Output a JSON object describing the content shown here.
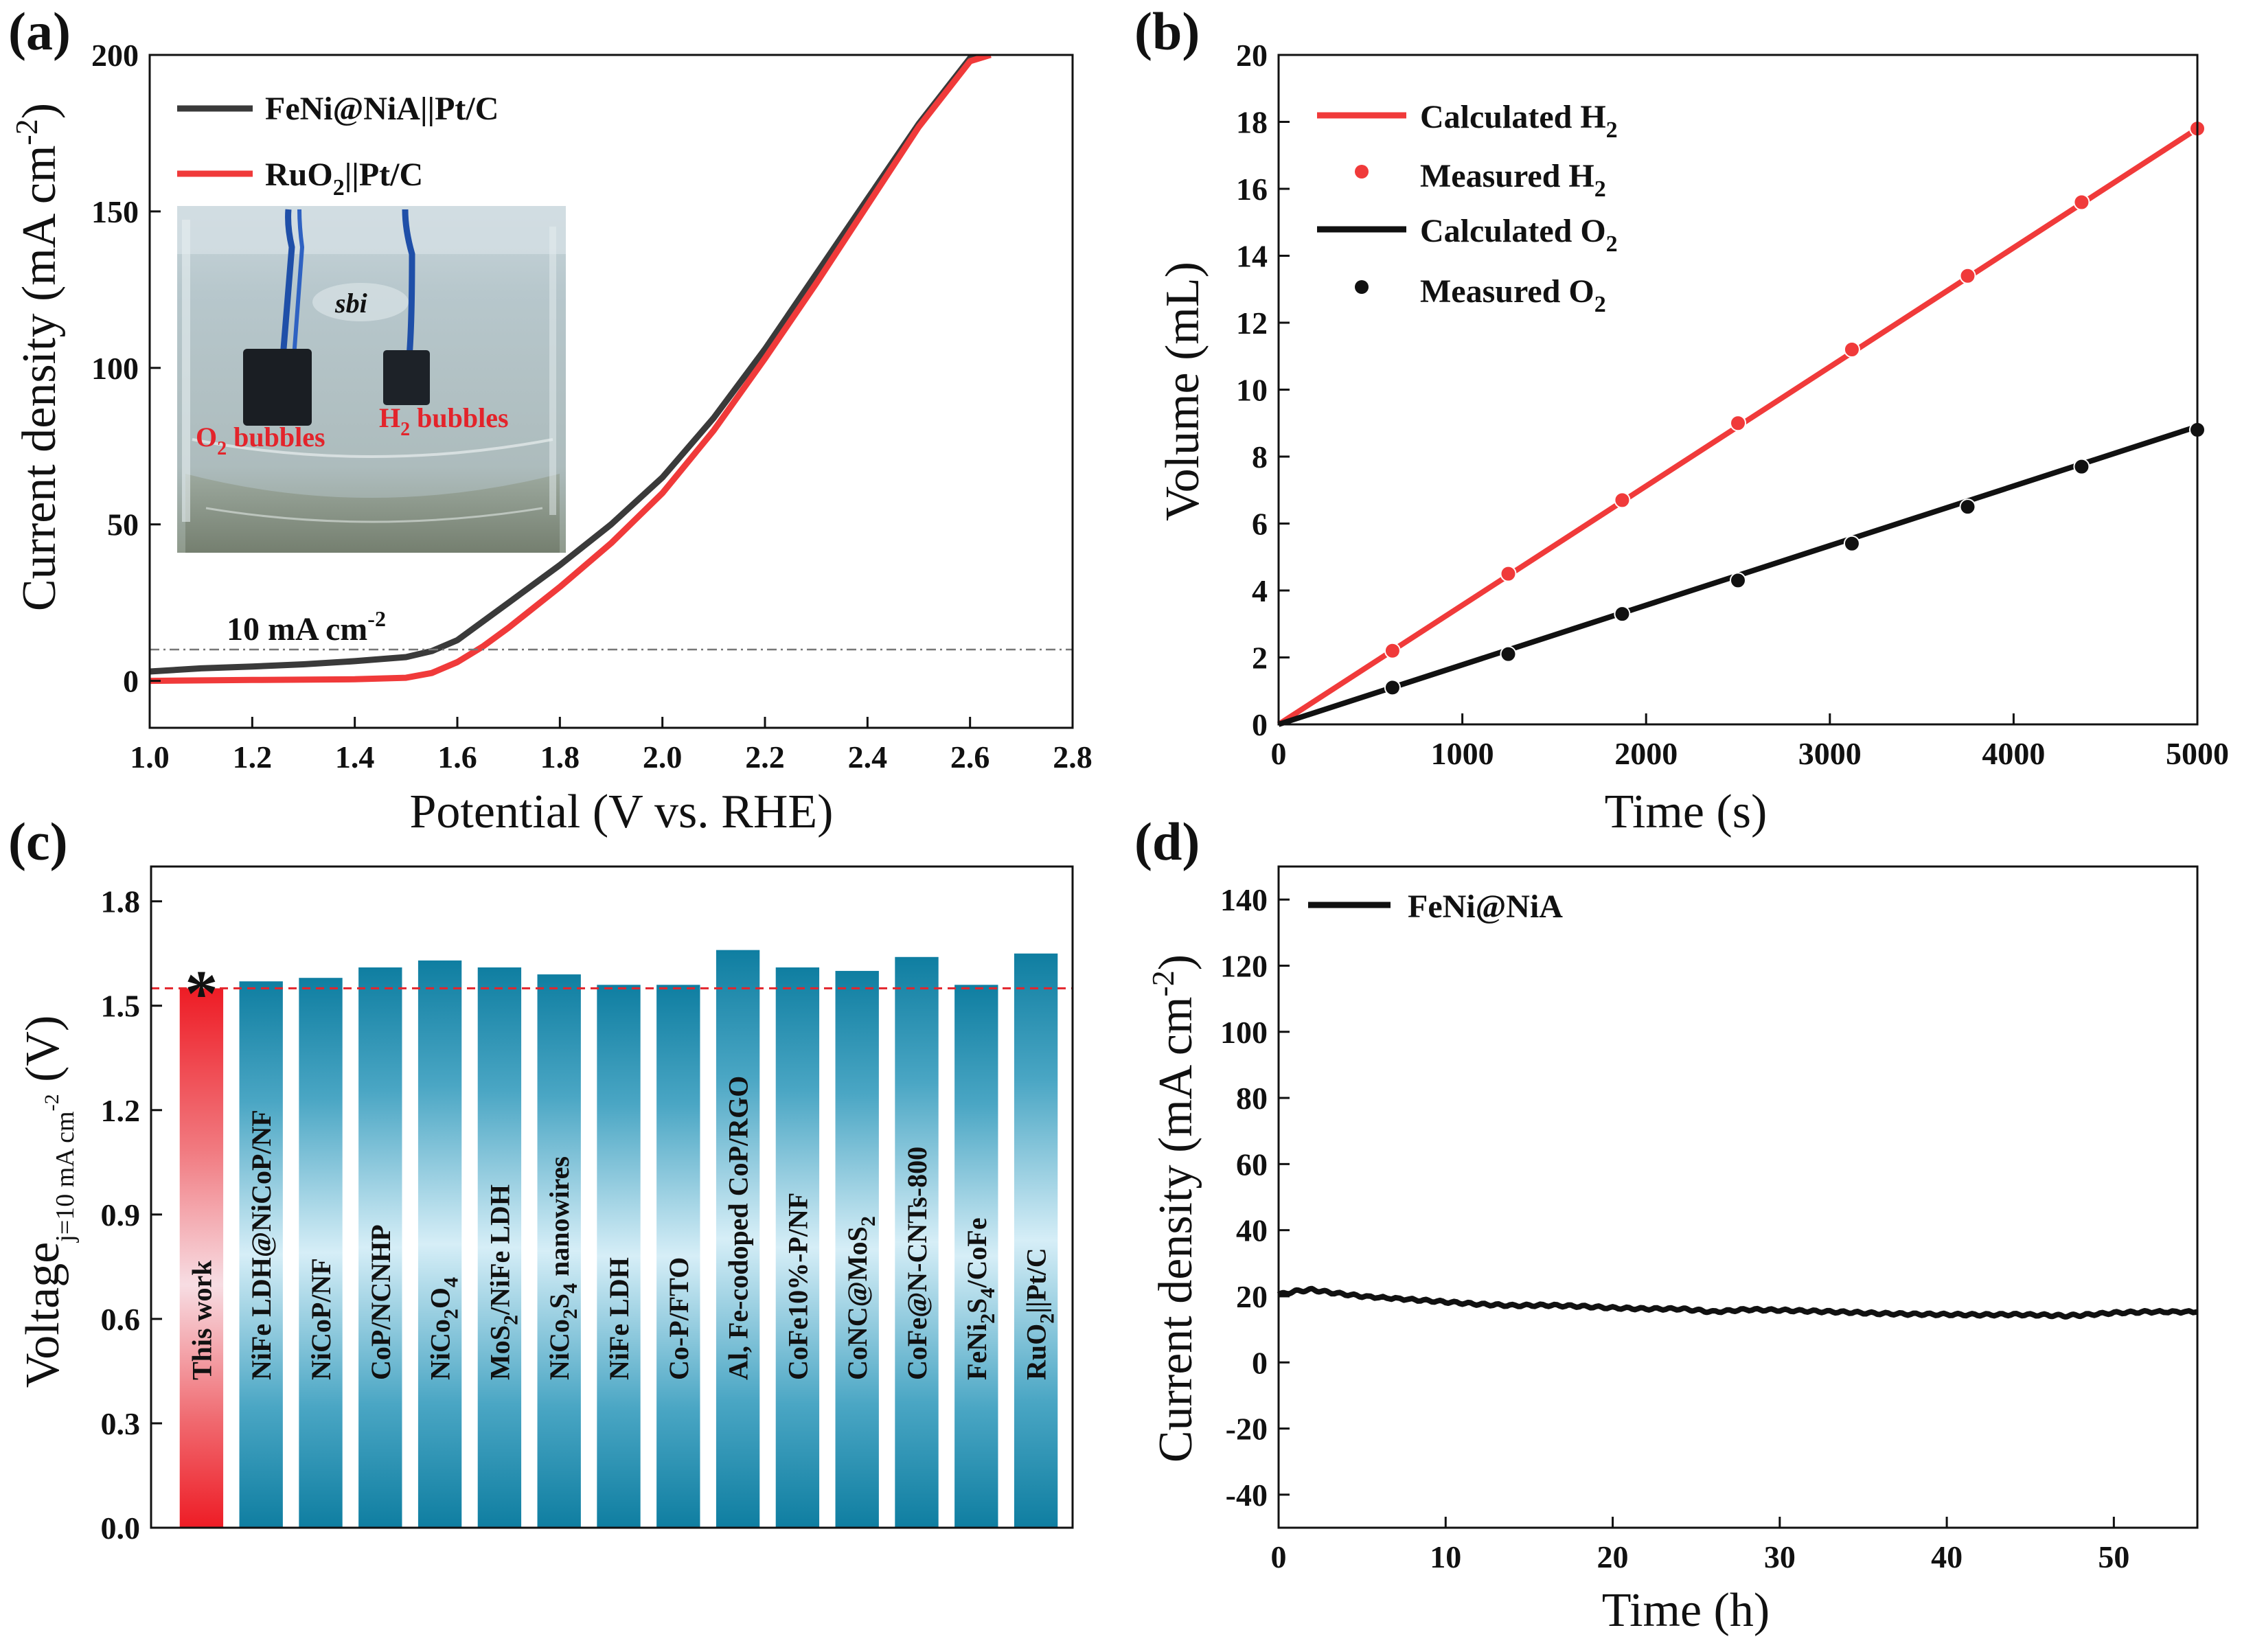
{
  "figure": {
    "colors": {
      "black_series": "#111111",
      "gray_series": "#3a3a3a",
      "red_series": "#f03a3a",
      "teal_bar": "#0f7ea1",
      "teal_light": "#d6eef7",
      "this_work_red": "#ee1c25",
      "dashed_red": "#e3242b",
      "reference_line": "#777777"
    }
  },
  "chart_data": [
    {
      "id": "a",
      "panel_label": "(a)",
      "type": "line",
      "xlabel": "Potential (V vs. RHE)",
      "ylabel_parts": {
        "main": "Current density (mA cm",
        "sup": "-2",
        "close": ")"
      },
      "xlim": [
        1.0,
        2.8
      ],
      "ylim": [
        -15,
        200
      ],
      "xticks": [
        "1.0",
        "1.2",
        "1.4",
        "1.6",
        "1.8",
        "2.0",
        "2.2",
        "2.4",
        "2.6",
        "2.8"
      ],
      "xtick_values": [
        1.0,
        1.2,
        1.4,
        1.6,
        1.8,
        2.0,
        2.2,
        2.4,
        2.6,
        2.8
      ],
      "yticks": [
        "0",
        "50",
        "100",
        "150",
        "200"
      ],
      "ytick_values": [
        0,
        50,
        100,
        150,
        200
      ],
      "series": [
        {
          "name": "FeNi@NiA||Pt/C",
          "legend_parts": {
            "main": "FeNi@NiA||Pt/C"
          },
          "color": "#3a3a3a",
          "points": [
            [
              1.0,
              3
            ],
            [
              1.1,
              4
            ],
            [
              1.2,
              4.6
            ],
            [
              1.3,
              5.3
            ],
            [
              1.4,
              6.3
            ],
            [
              1.5,
              7.6
            ],
            [
              1.55,
              9.5
            ],
            [
              1.6,
              13
            ],
            [
              1.7,
              25
            ],
            [
              1.8,
              37
            ],
            [
              1.9,
              50
            ],
            [
              2.0,
              65
            ],
            [
              2.1,
              84
            ],
            [
              2.2,
              106
            ],
            [
              2.3,
              130
            ],
            [
              2.4,
              154
            ],
            [
              2.5,
              178
            ],
            [
              2.6,
              199
            ],
            [
              2.62,
              200
            ]
          ]
        },
        {
          "name": "RuO2||Pt/C",
          "legend_parts": {
            "main": "RuO",
            "sub": "2",
            "rest": "||Pt/C"
          },
          "color": "#f03a3a",
          "points": [
            [
              1.0,
              0
            ],
            [
              1.2,
              0.3
            ],
            [
              1.4,
              0.5
            ],
            [
              1.5,
              1.0
            ],
            [
              1.55,
              2.5
            ],
            [
              1.6,
              6
            ],
            [
              1.65,
              11
            ],
            [
              1.7,
              17
            ],
            [
              1.8,
              30
            ],
            [
              1.9,
              44
            ],
            [
              2.0,
              60
            ],
            [
              2.1,
              80
            ],
            [
              2.2,
              103
            ],
            [
              2.3,
              127
            ],
            [
              2.4,
              152
            ],
            [
              2.5,
              177
            ],
            [
              2.6,
              198
            ],
            [
              2.64,
              200
            ]
          ]
        }
      ],
      "reference_line": {
        "y": 10,
        "label_parts": {
          "main": "10 mA cm",
          "sup": "-2"
        }
      },
      "inset": {
        "left_label_parts": {
          "main": "O",
          "sub": "2",
          "rest": " bubbles"
        },
        "right_label_parts": {
          "main": "H",
          "sub": "2",
          "rest": " bubbles"
        },
        "jar_label": "sbi"
      }
    },
    {
      "id": "b",
      "panel_label": "(b)",
      "type": "line+scatter",
      "xlabel": "Time (s)",
      "ylabel": "Volume (mL)",
      "xlim": [
        0,
        5000
      ],
      "ylim": [
        0,
        20
      ],
      "xticks": [
        "0",
        "1000",
        "2000",
        "3000",
        "4000",
        "5000"
      ],
      "xtick_values": [
        0,
        1000,
        2000,
        3000,
        4000,
        5000
      ],
      "yticks": [
        "0",
        "2",
        "4",
        "6",
        "8",
        "10",
        "12",
        "14",
        "16",
        "18",
        "20"
      ],
      "ytick_values": [
        0,
        2,
        4,
        6,
        8,
        10,
        12,
        14,
        16,
        18,
        20
      ],
      "series": [
        {
          "name": "Calculated H2",
          "legend_parts": {
            "main": "Calculated H",
            "sub": "2"
          },
          "style": "line",
          "color": "#f03a3a",
          "x": [
            0,
            5000
          ],
          "y": [
            0,
            17.8
          ]
        },
        {
          "name": "Measured H2",
          "legend_parts": {
            "main": "Measured H",
            "sub": "2"
          },
          "style": "points",
          "color": "#f03a3a",
          "x": [
            620,
            1250,
            1870,
            2500,
            3120,
            3750,
            4370,
            5000
          ],
          "y": [
            2.2,
            4.5,
            6.7,
            9.0,
            11.2,
            13.4,
            15.6,
            17.8
          ]
        },
        {
          "name": "Calculated O2",
          "legend_parts": {
            "main": "Calculated O",
            "sub": "2"
          },
          "style": "line",
          "color": "#111111",
          "x": [
            0,
            5000
          ],
          "y": [
            0,
            8.9
          ]
        },
        {
          "name": "Measured O2",
          "legend_parts": {
            "main": "Measured O",
            "sub": "2"
          },
          "style": "points",
          "color": "#111111",
          "x": [
            620,
            1250,
            1870,
            2500,
            3120,
            3750,
            4370,
            5000
          ],
          "y": [
            1.1,
            2.1,
            3.3,
            4.3,
            5.4,
            6.5,
            7.7,
            8.8
          ]
        }
      ]
    },
    {
      "id": "c",
      "panel_label": "(c)",
      "type": "bar",
      "ylabel_parts": {
        "main": "Voltage",
        "sub": "j=10 mA cm",
        "subsup": "-2",
        "close": " (V)"
      },
      "ylim": [
        0,
        1.9
      ],
      "yticks": [
        "0.0",
        "0.3",
        "0.6",
        "0.9",
        "1.2",
        "1.5",
        "1.8"
      ],
      "ytick_values": [
        0,
        0.3,
        0.6,
        0.9,
        1.2,
        1.5,
        1.8
      ],
      "marker": "*",
      "reference_value": 1.55,
      "bars": [
        {
          "label": "This work",
          "label_parts": [
            {
              "t": "This work"
            }
          ],
          "value": 1.55,
          "highlight": true
        },
        {
          "label": "NiFe LDH@NiCoP/NF",
          "label_parts": [
            {
              "t": "NiFe LDH@NiCoP/NF"
            }
          ],
          "value": 1.57
        },
        {
          "label": "NiCoP/NF",
          "label_parts": [
            {
              "t": "NiCoP/NF"
            }
          ],
          "value": 1.58
        },
        {
          "label": "CoP/NCNHP",
          "label_parts": [
            {
              "t": "CoP/NCNHP"
            }
          ],
          "value": 1.61
        },
        {
          "label": "NiCo2O4",
          "label_parts": [
            {
              "t": "NiCo"
            },
            {
              "t": "2",
              "s": "sub"
            },
            {
              "t": "O"
            },
            {
              "t": "4",
              "s": "sub"
            }
          ],
          "value": 1.63
        },
        {
          "label": "MoS2/NiFe LDH",
          "label_parts": [
            {
              "t": "MoS"
            },
            {
              "t": "2",
              "s": "sub"
            },
            {
              "t": "/NiFe LDH"
            }
          ],
          "value": 1.61
        },
        {
          "label": "NiCo2S4 nanowires",
          "label_parts": [
            {
              "t": "NiCo"
            },
            {
              "t": "2",
              "s": "sub"
            },
            {
              "t": "S"
            },
            {
              "t": "4",
              "s": "sub"
            },
            {
              "t": " nanowires"
            }
          ],
          "value": 1.59
        },
        {
          "label": "NiFe LDH",
          "label_parts": [
            {
              "t": "NiFe LDH"
            }
          ],
          "value": 1.56
        },
        {
          "label": "Co-P/FTO",
          "label_parts": [
            {
              "t": "Co-P/FTO"
            }
          ],
          "value": 1.56
        },
        {
          "label": "Al, Fe-codoped CoP/RGO",
          "label_parts": [
            {
              "t": "Al, Fe-codoped CoP/RGO"
            }
          ],
          "value": 1.66
        },
        {
          "label": "CoFe10%-P/NF",
          "label_parts": [
            {
              "t": "CoFe10%-P/NF"
            }
          ],
          "value": 1.61
        },
        {
          "label": "CoNC@MoS2",
          "label_parts": [
            {
              "t": "CoNC@MoS"
            },
            {
              "t": "2",
              "s": "sub"
            }
          ],
          "value": 1.6
        },
        {
          "label": "CoFe@N-CNTs-800",
          "label_parts": [
            {
              "t": "CoFe@N-CNTs-800"
            }
          ],
          "value": 1.64
        },
        {
          "label": "FeNi2S4/CoFe",
          "label_parts": [
            {
              "t": "FeNi"
            },
            {
              "t": "2",
              "s": "sub"
            },
            {
              "t": "S"
            },
            {
              "t": "4",
              "s": "sub"
            },
            {
              "t": "/CoFe"
            }
          ],
          "value": 1.56
        },
        {
          "label": "RuO2||Pt/C",
          "label_parts": [
            {
              "t": "RuO"
            },
            {
              "t": "2",
              "s": "sub"
            },
            {
              "t": "||Pt/C"
            }
          ],
          "value": 1.65
        }
      ]
    },
    {
      "id": "d",
      "panel_label": "(d)",
      "type": "line",
      "xlabel": "Time (h)",
      "ylabel_parts": {
        "main": "Current density (mA cm",
        "sup": "-2",
        "close": ")"
      },
      "xlim": [
        0,
        55
      ],
      "ylim": [
        -50,
        150
      ],
      "xticks": [
        "0",
        "10",
        "20",
        "30",
        "40",
        "50"
      ],
      "xtick_values": [
        0,
        10,
        20,
        30,
        40,
        50
      ],
      "yticks": [
        "-40",
        "-20",
        "0",
        "20",
        "40",
        "60",
        "80",
        "100",
        "120",
        "140"
      ],
      "ytick_values": [
        -40,
        -20,
        0,
        20,
        40,
        60,
        80,
        100,
        120,
        140
      ],
      "series": [
        {
          "name": "FeNi@NiA",
          "legend_parts": {
            "main": "FeNi@NiA"
          },
          "color": "#111111",
          "points": [
            [
              0,
              20.5
            ],
            [
              1,
              21.5
            ],
            [
              2,
              22
            ],
            [
              3,
              21.2
            ],
            [
              5,
              20
            ],
            [
              8,
              19
            ],
            [
              10,
              18.3
            ],
            [
              12,
              17.6
            ],
            [
              14,
              17.2
            ],
            [
              16,
              17.3
            ],
            [
              18,
              17
            ],
            [
              20,
              16.5
            ],
            [
              22,
              16.2
            ],
            [
              24,
              16.2
            ],
            [
              25,
              15.8
            ],
            [
              26,
              15.3
            ],
            [
              28,
              16
            ],
            [
              30,
              15.8
            ],
            [
              32,
              15.5
            ],
            [
              34,
              15.2
            ],
            [
              36,
              14.8
            ],
            [
              38,
              14.6
            ],
            [
              40,
              14.5
            ],
            [
              42,
              14.4
            ],
            [
              44,
              14.5
            ],
            [
              46,
              14.3
            ],
            [
              47,
              14.1
            ],
            [
              48,
              14.3
            ],
            [
              50,
              15
            ],
            [
              52,
              15.3
            ],
            [
              55,
              15.3
            ]
          ]
        }
      ]
    }
  ]
}
